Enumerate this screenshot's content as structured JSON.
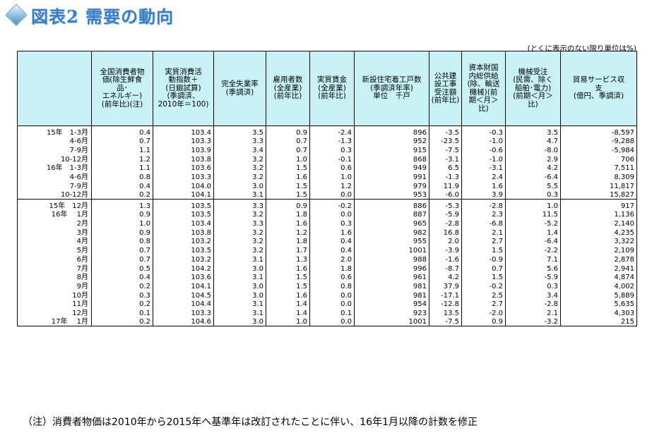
{
  "title": "図表2 需要の動向",
  "unit_note": "(とくに表示のない限り単位は%)",
  "headers": [
    "全国消費者物\n価(除生鮮食\n品･\nエネルギー)\n(前年比)(注)",
    "実質消費活\n動指数＋\n(日銀試算)\n(季調済、\n2010年＝100)",
    "完全失業率\n(季調済)",
    "雇用者数\n(全産業)\n(前年比)",
    "実質賃金\n(全産業)\n(前年比)",
    "新設住宅着工戸数\n(季調済年率)\n単位　千戸",
    "公共建\n設工事\n受注額\n(前年比)",
    "資本財国\n内総供給\n(除、輸送\n機械)(前\n期＜月＞\n比)",
    "機械受注\n(民需、除く\n船舶･電力)\n(前期＜月＞\n比)",
    "貿易サービス収\n支\n(億円、季調済)"
  ],
  "rows": [
    {
      "period": "15年　1-3月",
      "values": [
        "0.4",
        "103.4",
        "3.5",
        "0.9",
        "-2.4",
        "896",
        "-3.5",
        "-0.3",
        "3.5",
        "-8,597"
      ]
    },
    {
      "period": "4-6月",
      "values": [
        "0.7",
        "103.3",
        "3.3",
        "0.7",
        "-1.3",
        "952",
        "-23.5",
        "-1.0",
        "4.7",
        "-9,288"
      ]
    },
    {
      "period": "7-9月",
      "values": [
        "1.1",
        "103.9",
        "3.4",
        "0.7",
        "0.3",
        "915",
        "-7.5",
        "-0.6",
        "-8.0",
        "-5,984"
      ]
    },
    {
      "period": "10-12月",
      "values": [
        "1.2",
        "103.8",
        "3.2",
        "1.0",
        "-0.1",
        "868",
        "-3.1",
        "-1.0",
        "2.9",
        "706"
      ]
    },
    {
      "period": "16年　1-3月",
      "values": [
        "1.1",
        "103.6",
        "3.2",
        "1.5",
        "0.6",
        "949",
        "6.5",
        "-3.1",
        "4.2",
        "7,511"
      ]
    },
    {
      "period": "4-6月",
      "values": [
        "0.8",
        "103.3",
        "3.2",
        "1.6",
        "1.0",
        "991",
        "-1.3",
        "2.4",
        "-6.4",
        "8,309"
      ]
    },
    {
      "period": "7-9月",
      "values": [
        "0.4",
        "104.0",
        "3.0",
        "1.5",
        "1.2",
        "979",
        "11.9",
        "1.6",
        "5.5",
        "11,817"
      ]
    },
    {
      "period": "10-12月",
      "values": [
        "0.2",
        "104.1",
        "3.1",
        "1.5",
        "0.0",
        "953",
        "-6.0",
        "3.9",
        "0.3",
        "15,827"
      ]
    },
    {
      "period": "15年　12月",
      "values": [
        "1.3",
        "103.5",
        "3.3",
        "0.9",
        "-0.2",
        "886",
        "-5.3",
        "-2.8",
        "1.0",
        "917"
      ]
    },
    {
      "period": "16年　 1月",
      "values": [
        "0.9",
        "103.5",
        "3.2",
        "1.8",
        "0.0",
        "887",
        "-5.9",
        "2.3",
        "11.5",
        "1,136"
      ]
    },
    {
      "period": "2月",
      "values": [
        "1.0",
        "103.4",
        "3.3",
        "1.6",
        "0.3",
        "965",
        "-2.8",
        "-6.8",
        "-5.2",
        "2,140"
      ]
    },
    {
      "period": "3月",
      "values": [
        "0.9",
        "103.8",
        "3.2",
        "1.2",
        "1.6",
        "982",
        "16.8",
        "2.1",
        "1.4",
        "4,235"
      ]
    },
    {
      "period": "4月",
      "values": [
        "0.8",
        "103.2",
        "3.2",
        "1.8",
        "0.4",
        "955",
        "2.0",
        "2.7",
        "-6.4",
        "3,322"
      ]
    },
    {
      "period": "5月",
      "values": [
        "0.7",
        "103.5",
        "3.2",
        "1.7",
        "0.4",
        "1001",
        "-3.9",
        "1.5",
        "-2.2",
        "2,109"
      ]
    },
    {
      "period": "6月",
      "values": [
        "0.7",
        "103.2",
        "3.1",
        "1.3",
        "2.0",
        "988",
        "-1.6",
        "-0.9",
        "7.1",
        "2,878"
      ]
    },
    {
      "period": "7月",
      "values": [
        "0.5",
        "104.2",
        "3.0",
        "1.6",
        "1.8",
        "996",
        "-8.7",
        "0.7",
        "5.6",
        "2,941"
      ]
    },
    {
      "period": "8月",
      "values": [
        "0.4",
        "103.6",
        "3.1",
        "1.5",
        "0.6",
        "961",
        "4.2",
        "1.5",
        "-5.9",
        "4,874"
      ]
    },
    {
      "period": "9月",
      "values": [
        "0.2",
        "104.1",
        "3.0",
        "1.5",
        "0.8",
        "981",
        "37.9",
        "-0.2",
        "0.3",
        "4,002"
      ]
    },
    {
      "period": "10月",
      "values": [
        "0.3",
        "104.5",
        "3.0",
        "1.6",
        "0.0",
        "981",
        "-17.1",
        "2.5",
        "3.4",
        "5,889"
      ]
    },
    {
      "period": "11月",
      "values": [
        "0.2",
        "104.4",
        "3.1",
        "1.4",
        "0.0",
        "954",
        "-12.8",
        "2.7",
        "-2.8",
        "5,635"
      ]
    },
    {
      "period": "12月",
      "values": [
        "0.1",
        "103.3",
        "3.1",
        "1.4",
        "0.1",
        "923",
        "13.5",
        "-2.0",
        "2.1",
        "4,303"
      ]
    },
    {
      "period": "17年　 1月",
      "values": [
        "0.2",
        "104.6",
        "3.0",
        "1.0",
        "0.0",
        "1001",
        "-7.5",
        "0.9",
        "-3.2",
        "215"
      ]
    }
  ],
  "footnote": "（注）消費者物価は2010年から2015年へ基準年は改訂されたことに伴い、16年1月以降の計数を修正"
}
